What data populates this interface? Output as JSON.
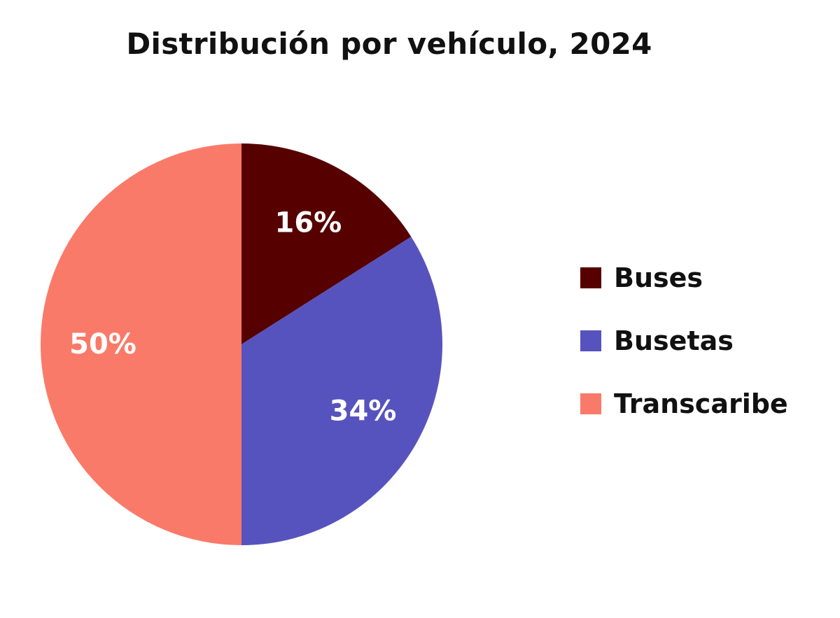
{
  "chart_data": {
    "type": "pie",
    "title": "Distribución por vehículo, 2024",
    "legend_position": "right",
    "categories": [
      "Buses",
      "Busetas",
      "Transcaribe"
    ],
    "values": [
      16,
      34,
      50
    ],
    "value_labels": [
      "16%",
      "34%",
      "50%"
    ],
    "colors": [
      "#560000",
      "#5753be",
      "#fa7a69"
    ]
  }
}
